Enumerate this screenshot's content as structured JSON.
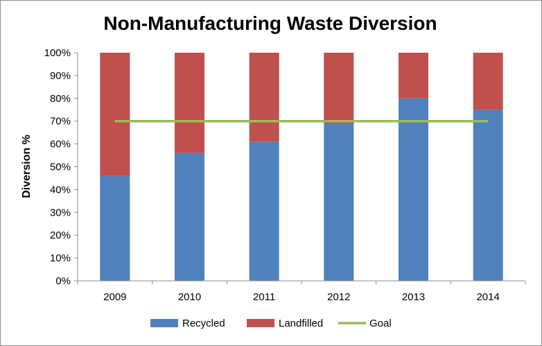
{
  "chart_data": {
    "type": "bar",
    "stacked": true,
    "title": "Non-Manufacturing Waste Diversion",
    "xlabel": "",
    "ylabel": "Diversion %",
    "categories": [
      "2009",
      "2010",
      "2011",
      "2012",
      "2013",
      "2014"
    ],
    "series": [
      {
        "name": "Recycled",
        "type": "bar",
        "values": [
          46,
          56,
          61,
          69,
          80,
          75
        ],
        "color": "#4f81bd"
      },
      {
        "name": "Landfilled",
        "type": "bar",
        "values": [
          54,
          44,
          39,
          31,
          20,
          25
        ],
        "color": "#c0504d"
      },
      {
        "name": "Goal",
        "type": "line",
        "values": [
          70,
          70,
          70,
          70,
          70,
          70
        ],
        "color": "#9bbb59"
      }
    ],
    "ylim": [
      0,
      100
    ],
    "yticks": [
      "0%",
      "10%",
      "20%",
      "30%",
      "40%",
      "50%",
      "60%",
      "70%",
      "80%",
      "90%",
      "100%"
    ],
    "grid": false,
    "legend_position": "bottom"
  }
}
